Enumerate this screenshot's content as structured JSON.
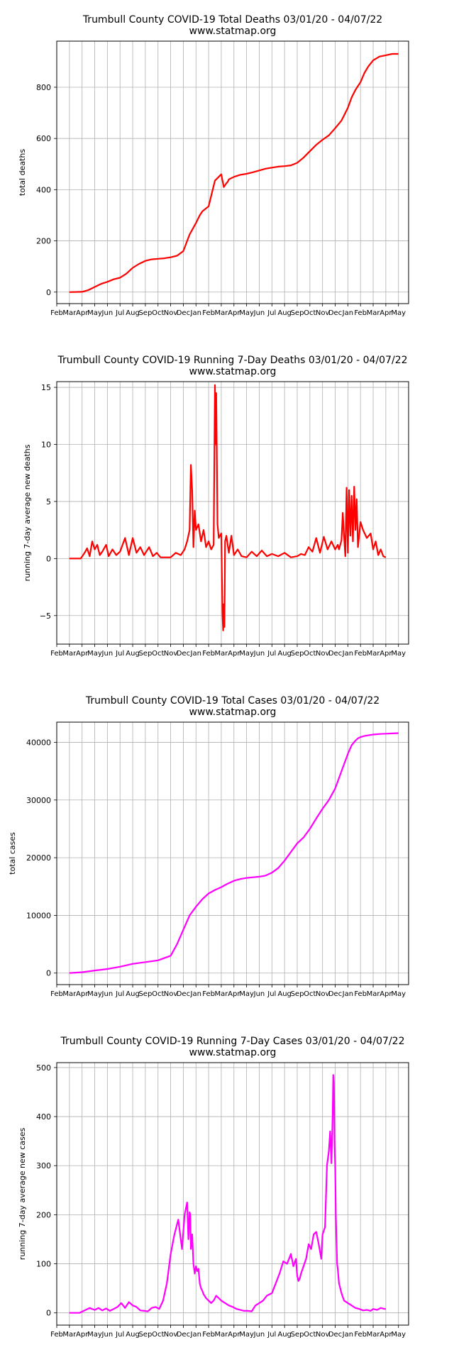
{
  "chart_data": [
    {
      "type": "line",
      "title": "Trumbull County COVID-19 Total Deaths 03/01/20 - 04/07/22",
      "subtitle": "www.statmap.org",
      "xlabel": "",
      "ylabel": "total deaths",
      "color": "#ff0000",
      "x_ticks": [
        "Feb",
        "Mar",
        "Apr",
        "May",
        "Jun",
        "Jul",
        "Aug",
        "Sep",
        "Oct",
        "Nov",
        "Dec",
        "Jan",
        "Feb",
        "Mar",
        "Apr",
        "May",
        "Jun",
        "Jul",
        "Aug",
        "Sep",
        "Oct",
        "Nov",
        "Dec",
        "Jan",
        "Feb",
        "Mar",
        "Apr",
        "May"
      ],
      "y_ticks": [
        0,
        200,
        400,
        600,
        800
      ],
      "ylim": [
        -45,
        980
      ],
      "grid": true,
      "series": [
        {
          "x": [
            1.0,
            2.0,
            2.5,
            3.0,
            3.5,
            4.0,
            4.5,
            5.0,
            5.5,
            6.0,
            6.5,
            7.0,
            7.5,
            8.0,
            8.5,
            9.0,
            9.5,
            10.0,
            10.5,
            11.0,
            11.3,
            11.5,
            12.0,
            12.5,
            13.0,
            13.2,
            13.4,
            13.5,
            13.6,
            14.0,
            14.5,
            15.0,
            15.5,
            16.0,
            16.5,
            17.0,
            17.5,
            18.0,
            18.5,
            19.0,
            19.5,
            20.0,
            20.5,
            21.0,
            21.5,
            22.0,
            22.5,
            22.8,
            23.0,
            23.3,
            23.6,
            24.0,
            24.3,
            24.6,
            25.0,
            25.5,
            26.0,
            26.5,
            27.0
          ],
          "y": [
            0,
            1,
            8,
            20,
            32,
            40,
            50,
            56,
            72,
            95,
            110,
            122,
            128,
            130,
            132,
            136,
            142,
            160,
            225,
            270,
            300,
            315,
            335,
            435,
            460,
            410,
            425,
            430,
            440,
            450,
            458,
            462,
            468,
            475,
            482,
            486,
            490,
            492,
            495,
            505,
            525,
            550,
            575,
            595,
            612,
            640,
            670,
            700,
            720,
            760,
            790,
            820,
            855,
            880,
            905,
            920,
            925,
            930,
            930
          ]
        }
      ]
    },
    {
      "type": "line",
      "title": "Trumbull County COVID-19 Running 7-Day Deaths 03/01/20 - 04/07/22",
      "subtitle": "www.statmap.org",
      "xlabel": "",
      "ylabel": "running 7-day average new deaths",
      "color": "#ff0000",
      "x_ticks": [
        "Feb",
        "Mar",
        "Apr",
        "May",
        "Jun",
        "Jul",
        "Aug",
        "Sep",
        "Oct",
        "Nov",
        "Dec",
        "Jan",
        "Feb",
        "Mar",
        "Apr",
        "May",
        "Jun",
        "Jul",
        "Aug",
        "Sep",
        "Oct",
        "Nov",
        "Dec",
        "Jan",
        "Feb",
        "Mar",
        "Apr",
        "May"
      ],
      "y_ticks": [
        -5,
        0,
        5,
        10,
        15
      ],
      "ylim": [
        -7.5,
        15.5
      ],
      "grid": true,
      "series": [
        {
          "x": [
            1.0,
            1.9,
            2.2,
            2.4,
            2.6,
            2.8,
            3.0,
            3.2,
            3.4,
            3.6,
            3.9,
            4.1,
            4.4,
            4.7,
            5.0,
            5.4,
            5.7,
            6.0,
            6.3,
            6.6,
            6.9,
            7.3,
            7.6,
            7.9,
            8.2,
            8.6,
            9.0,
            9.4,
            9.8,
            10.1,
            10.3,
            10.5,
            10.6,
            10.7,
            10.8,
            10.9,
            11.0,
            11.2,
            11.4,
            11.6,
            11.8,
            12.0,
            12.2,
            12.4,
            12.5,
            12.55,
            12.6,
            12.7,
            12.8,
            13.0,
            13.1,
            13.15,
            13.2,
            13.25,
            13.3,
            13.4,
            13.6,
            13.8,
            14.0,
            14.3,
            14.6,
            15.0,
            15.4,
            15.8,
            16.2,
            16.6,
            17.0,
            17.5,
            18.0,
            18.5,
            19.0,
            19.3,
            19.6,
            19.9,
            20.2,
            20.5,
            20.8,
            21.1,
            21.4,
            21.7,
            22.0,
            22.2,
            22.3,
            22.5,
            22.6,
            22.7,
            22.8,
            22.9,
            23.0,
            23.1,
            23.2,
            23.3,
            23.4,
            23.5,
            23.6,
            23.7,
            23.8,
            24.0,
            24.2,
            24.5,
            24.8,
            25.0,
            25.2,
            25.4,
            25.6,
            25.8,
            26.0
          ],
          "y": [
            0,
            0,
            0.5,
            0.9,
            0.2,
            1.5,
            0.8,
            1.2,
            0.3,
            0.6,
            1.2,
            0.2,
            0.8,
            0.3,
            0.6,
            1.8,
            0.3,
            1.8,
            0.5,
            1.0,
            0.3,
            1.0,
            0.2,
            0.5,
            0.1,
            0.1,
            0.1,
            0.5,
            0.3,
            0.8,
            1.5,
            2.5,
            8.2,
            6.0,
            1.0,
            4.2,
            2.5,
            3.0,
            1.5,
            2.5,
            1.0,
            1.5,
            0.8,
            1.2,
            15.2,
            10.0,
            14.5,
            3.0,
            1.8,
            2.2,
            -5.0,
            -6.3,
            -4.0,
            -6.0,
            1.5,
            2.0,
            0.5,
            2.0,
            0.3,
            0.8,
            0.2,
            0.1,
            0.6,
            0.2,
            0.7,
            0.2,
            0.4,
            0.2,
            0.5,
            0.1,
            0.2,
            0.4,
            0.3,
            1.0,
            0.6,
            1.8,
            0.5,
            1.9,
            0.8,
            1.5,
            0.8,
            1.2,
            0.8,
            1.6,
            4.0,
            2.0,
            0.2,
            6.2,
            0.5,
            6.0,
            2.0,
            5.5,
            1.5,
            6.3,
            2.5,
            5.2,
            1.0,
            3.2,
            2.5,
            1.8,
            2.2,
            0.8,
            1.5,
            0.3,
            0.8,
            0.2,
            0.1
          ]
        }
      ]
    },
    {
      "type": "line",
      "title": "Trumbull County COVID-19 Total Cases 03/01/20 - 04/07/22",
      "subtitle": "www.statmap.org",
      "xlabel": "",
      "ylabel": "total cases",
      "color": "#ff00ff",
      "x_ticks": [
        "Feb",
        "Mar",
        "Apr",
        "May",
        "Jun",
        "Jul",
        "Aug",
        "Sep",
        "Oct",
        "Nov",
        "Dec",
        "Jan",
        "Feb",
        "Mar",
        "Apr",
        "May",
        "Jun",
        "Jul",
        "Aug",
        "Sep",
        "Oct",
        "Nov",
        "Dec",
        "Jan",
        "Feb",
        "Mar",
        "Apr",
        "May"
      ],
      "y_ticks": [
        0,
        10000,
        20000,
        30000,
        40000
      ],
      "ylim": [
        -2000,
        43500
      ],
      "grid": true,
      "series": [
        {
          "x": [
            1.0,
            2.0,
            3.0,
            4.0,
            5.0,
            6.0,
            7.0,
            8.0,
            9.0,
            9.5,
            10.0,
            10.5,
            11.0,
            11.5,
            12.0,
            12.5,
            13.0,
            13.5,
            14.0,
            14.5,
            15.0,
            15.5,
            16.0,
            16.5,
            17.0,
            17.5,
            18.0,
            18.5,
            19.0,
            19.5,
            20.0,
            20.5,
            21.0,
            21.5,
            22.0,
            22.5,
            23.0,
            23.3,
            23.6,
            23.8,
            24.0,
            24.3,
            24.7,
            25.0,
            25.5,
            26.0,
            26.5,
            27.0
          ],
          "y": [
            0,
            150,
            450,
            700,
            1100,
            1600,
            1900,
            2200,
            3000,
            5000,
            7500,
            10000,
            11500,
            12800,
            13800,
            14400,
            14900,
            15500,
            16000,
            16300,
            16500,
            16600,
            16700,
            16900,
            17400,
            18200,
            19500,
            21000,
            22500,
            23500,
            25000,
            26800,
            28500,
            30000,
            32000,
            35000,
            38000,
            39500,
            40300,
            40700,
            40900,
            41100,
            41250,
            41350,
            41450,
            41500,
            41550,
            41600
          ]
        }
      ]
    },
    {
      "type": "line",
      "title": "Trumbull County COVID-19 Running 7-Day Cases 03/01/20 - 04/07/22",
      "subtitle": "www.statmap.org",
      "xlabel": "",
      "ylabel": "running 7-day average new cases",
      "color": "#ff00ff",
      "x_ticks": [
        "Feb",
        "Mar",
        "Apr",
        "May",
        "Jun",
        "Jul",
        "Aug",
        "Sep",
        "Oct",
        "Nov",
        "Dec",
        "Jan",
        "Feb",
        "Mar",
        "Apr",
        "May",
        "Jun",
        "Jul",
        "Aug",
        "Sep",
        "Oct",
        "Nov",
        "Dec",
        "Jan",
        "Feb",
        "Mar",
        "Apr",
        "May"
      ],
      "y_ticks": [
        0,
        100,
        200,
        300,
        400,
        500
      ],
      "ylim": [
        -25,
        510
      ],
      "grid": true,
      "series": [
        {
          "x": [
            1.0,
            1.8,
            2.2,
            2.6,
            3.0,
            3.3,
            3.6,
            3.9,
            4.2,
            4.5,
            4.8,
            5.1,
            5.4,
            5.7,
            6.0,
            6.3,
            6.6,
            6.9,
            7.2,
            7.5,
            7.8,
            8.1,
            8.4,
            8.7,
            9.0,
            9.3,
            9.6,
            9.9,
            10.1,
            10.3,
            10.4,
            10.5,
            10.55,
            10.6,
            10.7,
            10.8,
            10.9,
            11.0,
            11.1,
            11.2,
            11.3,
            11.4,
            11.5,
            11.6,
            11.8,
            12.0,
            12.2,
            12.4,
            12.6,
            12.8,
            13.0,
            13.3,
            13.6,
            13.9,
            14.2,
            14.5,
            14.8,
            15.1,
            15.4,
            15.7,
            16.0,
            16.3,
            16.6,
            17.0,
            17.3,
            17.6,
            17.9,
            18.2,
            18.5,
            18.7,
            18.9,
            19.0,
            19.1,
            19.2,
            19.3,
            19.5,
            19.7,
            19.9,
            20.1,
            20.3,
            20.5,
            20.7,
            20.9,
            21.0,
            21.2,
            21.35,
            21.5,
            21.6,
            21.7,
            21.8,
            21.85,
            21.9,
            21.95,
            22.0,
            22.05,
            22.1,
            22.15,
            22.2,
            22.3,
            22.5,
            22.7,
            23.0,
            23.3,
            23.6,
            23.9,
            24.2,
            24.5,
            24.8,
            25.0,
            25.3,
            25.6,
            25.9,
            26.0
          ],
          "y": [
            0,
            0,
            5,
            10,
            6,
            10,
            5,
            9,
            4,
            8,
            12,
            20,
            10,
            22,
            15,
            12,
            5,
            4,
            3,
            10,
            12,
            8,
            25,
            60,
            120,
            160,
            190,
            130,
            200,
            225,
            150,
            205,
            200,
            130,
            160,
            100,
            80,
            95,
            85,
            90,
            60,
            50,
            45,
            38,
            30,
            25,
            20,
            25,
            35,
            30,
            25,
            20,
            15,
            12,
            8,
            6,
            4,
            4,
            3,
            15,
            20,
            25,
            35,
            40,
            60,
            80,
            105,
            100,
            120,
            95,
            110,
            75,
            65,
            70,
            80,
            95,
            110,
            140,
            130,
            160,
            165,
            140,
            110,
            160,
            175,
            300,
            330,
            370,
            305,
            400,
            485,
            470,
            350,
            300,
            200,
            150,
            100,
            90,
            60,
            40,
            25,
            20,
            15,
            10,
            8,
            5,
            6,
            4,
            8,
            6,
            10,
            8,
            8
          ]
        }
      ]
    }
  ]
}
